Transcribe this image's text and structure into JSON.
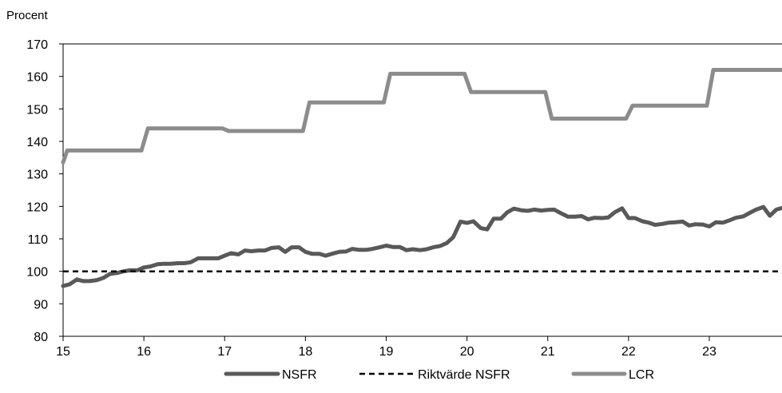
{
  "chart_data": {
    "type": "line",
    "title": "",
    "ylabel": "Procent",
    "xlabel": "",
    "xlim": [
      15,
      23.9
    ],
    "ylim": [
      80,
      170
    ],
    "xticks": [
      15,
      16,
      17,
      18,
      19,
      20,
      21,
      22,
      23
    ],
    "xtick_labels": [
      "15",
      "16",
      "17",
      "18",
      "19",
      "20",
      "21",
      "22",
      "23"
    ],
    "yticks": [
      80,
      90,
      100,
      110,
      120,
      130,
      140,
      150,
      160,
      170
    ],
    "ytick_labels": [
      "80",
      "90",
      "100",
      "110",
      "120",
      "130",
      "140",
      "150",
      "160",
      "170"
    ],
    "grid": false,
    "legend_position": "bottom",
    "series": [
      {
        "name": "NSFR",
        "color": "#595959",
        "style": "solid",
        "x": [
          15.0,
          15.08,
          15.17,
          15.25,
          15.33,
          15.42,
          15.5,
          15.58,
          15.67,
          15.75,
          15.83,
          15.92,
          16.0,
          16.08,
          16.17,
          16.25,
          16.33,
          16.42,
          16.5,
          16.58,
          16.67,
          16.75,
          16.83,
          16.92,
          17.0,
          17.08,
          17.17,
          17.25,
          17.33,
          17.42,
          17.5,
          17.58,
          17.67,
          17.75,
          17.83,
          17.92,
          18.0,
          18.08,
          18.17,
          18.25,
          18.33,
          18.42,
          18.5,
          18.58,
          18.67,
          18.75,
          18.83,
          18.92,
          19.0,
          19.08,
          19.17,
          19.25,
          19.33,
          19.42,
          19.5,
          19.58,
          19.67,
          19.75,
          19.83,
          19.92,
          20.0,
          20.08,
          20.17,
          20.25,
          20.33,
          20.42,
          20.5,
          20.58,
          20.67,
          20.75,
          20.83,
          20.92,
          21.0,
          21.08,
          21.17,
          21.25,
          21.33,
          21.42,
          21.5,
          21.58,
          21.67,
          21.75,
          21.83,
          21.92,
          22.0,
          22.08,
          22.17,
          22.25,
          22.33,
          22.42,
          22.5,
          22.58,
          22.67,
          22.75,
          22.83,
          22.92,
          23.0,
          23.08,
          23.17,
          23.25,
          23.33,
          23.42,
          23.5,
          23.58,
          23.67,
          23.75,
          23.83,
          23.9
        ],
        "values": [
          95.5,
          96,
          97.5,
          97,
          97,
          97.3,
          98,
          99.2,
          99.5,
          100,
          100.3,
          100.3,
          101.2,
          101.5,
          102.2,
          102.3,
          102.3,
          102.5,
          102.5,
          102.8,
          104,
          104,
          104,
          104,
          104.8,
          105.6,
          105.2,
          106.4,
          106.2,
          106.4,
          106.4,
          107.2,
          107.4,
          106,
          107.4,
          107.4,
          106,
          105.4,
          105.4,
          104.8,
          105.4,
          106,
          106.1,
          106.9,
          106.6,
          106.6,
          106.9,
          107.4,
          107.9,
          107.5,
          107.5,
          106.5,
          106.8,
          106.5,
          106.8,
          107.4,
          107.8,
          108.7,
          110.5,
          115.3,
          114.9,
          115.4,
          113.3,
          112.9,
          116.2,
          116.2,
          118.2,
          119.3,
          118.8,
          118.6,
          119,
          118.7,
          118.9,
          119,
          117.8,
          116.8,
          116.8,
          117,
          116,
          116.5,
          116.4,
          116.6,
          118.2,
          119.4,
          116.4,
          116.4,
          115.4,
          115,
          114.3,
          114.6,
          115,
          115.1,
          115.3,
          114.1,
          114.5,
          114.4,
          113.8,
          115.1,
          115,
          115.7,
          116.5,
          116.9,
          118,
          119,
          119.8,
          117.1,
          119,
          119.5
        ]
      },
      {
        "name": "Riktvärde NSFR",
        "color": "#000000",
        "style": "dashed",
        "x": [
          15.0,
          23.9
        ],
        "values": [
          100,
          100
        ]
      },
      {
        "name": "LCR",
        "color": "#8c8c8c",
        "style": "solid",
        "x": [
          15.0,
          15.05,
          15.97,
          16.05,
          16.97,
          17.05,
          17.97,
          18.05,
          18.97,
          19.05,
          19.97,
          20.05,
          20.97,
          21.05,
          21.97,
          22.05,
          22.97,
          23.05,
          23.9
        ],
        "values": [
          133.5,
          137.2,
          137.2,
          144,
          144,
          143.2,
          143.2,
          152,
          152,
          160.8,
          160.8,
          155.2,
          155.2,
          147,
          147,
          151,
          151,
          162,
          162
        ]
      }
    ]
  }
}
